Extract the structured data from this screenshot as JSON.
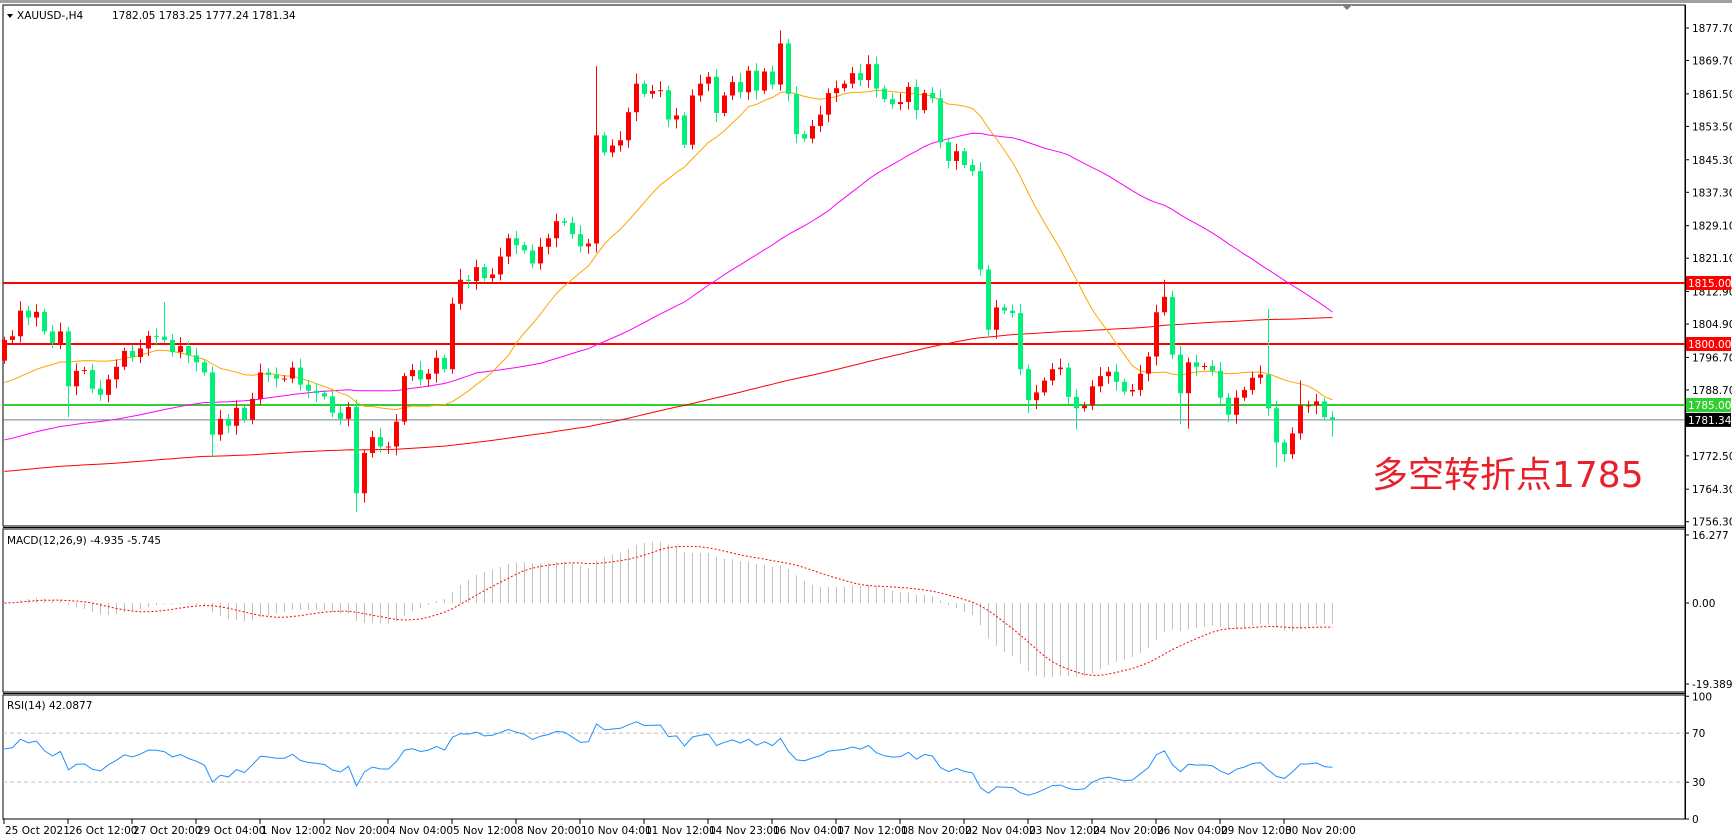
{
  "header": {
    "symbol_label": "XAUUSD-,H4",
    "ohlc_readout": "1782.05 1783.25 1777.24 1781.34"
  },
  "colors": {
    "bull_candle": "#ff0000",
    "bear_candle": "#00f07a",
    "resistance_line": "#ff0000",
    "pivot_line": "#32cd32",
    "bid_line": "#708090",
    "ma_fast": "#ffa500",
    "ma_mid": "#ff00ff",
    "ma_slow": "#ff0000",
    "macd_histogram": "#c0c0c0",
    "macd_signal": "#ff0000",
    "rsi_line": "#1e90ff",
    "annotation": "#e8202a"
  },
  "chart_data": [
    {
      "type": "candlestick",
      "title": "",
      "price_axis_ticks": [
        "1877.70",
        "1869.70",
        "1861.50",
        "1853.50",
        "1845.30",
        "1837.30",
        "1829.10",
        "1821.10",
        "1812.90",
        "1804.90",
        "1796.70",
        "1788.70",
        "1772.50",
        "1764.30",
        "1756.30"
      ],
      "ylim": [
        1756.3,
        1877.7
      ],
      "time_axis_labels": [
        "25 Oct 2021",
        "26 Oct 12:00",
        "27 Oct 20:00",
        "29 Oct 04:00",
        "1 Nov 12:00",
        "2 Nov 20:00",
        "4 Nov 04:00",
        "5 Nov 12:00",
        "8 Nov 20:00",
        "10 Nov 04:00",
        "11 Nov 12:00",
        "14 Nov 23:00",
        "16 Nov 04:00",
        "17 Nov 12:00",
        "18 Nov 20:00",
        "22 Nov 04:00",
        "23 Nov 12:00",
        "24 Nov 20:00",
        "26 Nov 04:00",
        "29 Nov 12:00",
        "30 Nov 20:00"
      ],
      "first_open": 1795.9,
      "closes": [
        1801.0,
        1801.9,
        1808.2,
        1806.5,
        1807.9,
        1803.1,
        1800.2,
        1803.1,
        1789.6,
        1793.4,
        1793.6,
        1789.0,
        1787.5,
        1791.3,
        1794.4,
        1798.3,
        1796.8,
        1798.9,
        1802.0,
        1801.8,
        1801.0,
        1798.0,
        1799.5,
        1797.2,
        1795.5,
        1793.0,
        1777.7,
        1781.6,
        1779.9,
        1784.3,
        1781.4,
        1786.5,
        1793.0,
        1792.4,
        1791.5,
        1791.5,
        1794.2,
        1790.0,
        1788.5,
        1787.9,
        1787.1,
        1783.1,
        1781.6,
        1784.5,
        1763.3,
        1773.2,
        1777.1,
        1774.8,
        1774.8,
        1780.9,
        1792.1,
        1793.6,
        1791.3,
        1792.7,
        1796.6,
        1793.8,
        1809.9,
        1815.8,
        1815.5,
        1818.9,
        1816.2,
        1817.1,
        1821.5,
        1826.0,
        1824.3,
        1823.0,
        1819.8,
        1823.9,
        1826.0,
        1830.2,
        1829.8,
        1827.0,
        1824.0,
        1824.7,
        1851.3,
        1847.1,
        1848.8,
        1850.1,
        1857.0,
        1864.0,
        1861.5,
        1862.2,
        1862.4,
        1855.2,
        1856.2,
        1849.0,
        1861.1,
        1864.0,
        1865.7,
        1856.8,
        1861.1,
        1864.4,
        1861.9,
        1867.2,
        1862.3,
        1867.0,
        1863.8,
        1873.9,
        1861.5,
        1851.6,
        1850.5,
        1853.6,
        1856.4,
        1861.7,
        1862.9,
        1864.0,
        1866.6,
        1864.9,
        1868.8,
        1862.8,
        1860.2,
        1859.0,
        1859.5,
        1863.2,
        1857.5,
        1861.7,
        1860.4,
        1849.6,
        1845.0,
        1847.4,
        1844.0,
        1842.5,
        1818.3,
        1803.5,
        1809.0,
        1808.2,
        1807.6,
        1793.8,
        1786.2,
        1788.1,
        1791.0,
        1793.8,
        1794.2,
        1787.0,
        1784.2,
        1784.9,
        1789.6,
        1792.1,
        1793.2,
        1790.7,
        1788.3,
        1788.7,
        1792.7,
        1796.9,
        1807.8,
        1811.6,
        1797.4,
        1787.9,
        1795.5,
        1794.4,
        1794.6,
        1793.4,
        1786.8,
        1782.6,
        1786.8,
        1788.7,
        1791.7,
        1792.5,
        1784.2,
        1775.8,
        1772.9,
        1778.0,
        1784.9,
        1784.9,
        1785.9,
        1782.0,
        1781.34
      ],
      "notable_highs": [
        [
          2,
          1810.5
        ],
        [
          20,
          1810.3
        ],
        [
          57,
          1818.5
        ],
        [
          74,
          1868.3
        ],
        [
          79,
          1866.5
        ],
        [
          97,
          1877.1
        ],
        [
          108,
          1871.0
        ],
        [
          145,
          1815.8
        ],
        [
          158,
          1808.6
        ],
        [
          162,
          1791.0
        ]
      ],
      "notable_lows": [
        [
          8,
          1782.0
        ],
        [
          26,
          1772.2
        ],
        [
          44,
          1758.7
        ],
        [
          45,
          1761.0
        ],
        [
          128,
          1783.0
        ],
        [
          134,
          1779.0
        ],
        [
          147,
          1780.3
        ],
        [
          148,
          1779.2
        ],
        [
          159,
          1769.7
        ],
        [
          160,
          1771.0
        ],
        [
          166,
          1777.2
        ]
      ],
      "horizontal_levels": [
        {
          "label": "1815.00",
          "value": 1815.0,
          "role": "resistance"
        },
        {
          "label": "1800.00",
          "value": 1800.0,
          "role": "resistance"
        },
        {
          "label": "1785.00",
          "value": 1785.0,
          "role": "pivot"
        },
        {
          "label": "1781.34",
          "value": 1781.34,
          "role": "bid"
        }
      ],
      "annotation": "多空转折点1785"
    },
    {
      "type": "bar",
      "pane_label": "MACD(12,26,9) -4.935 -5.745",
      "axis_ticks": [
        "16.277",
        "0.00",
        "-19.389"
      ],
      "ylim": [
        -19.389,
        16.277
      ]
    },
    {
      "type": "line",
      "pane_label": "RSI(14) 42.0877",
      "axis_ticks": [
        "100",
        "70",
        "30",
        "0"
      ],
      "levels": [
        70,
        30
      ],
      "ylim": [
        0,
        100
      ]
    }
  ]
}
